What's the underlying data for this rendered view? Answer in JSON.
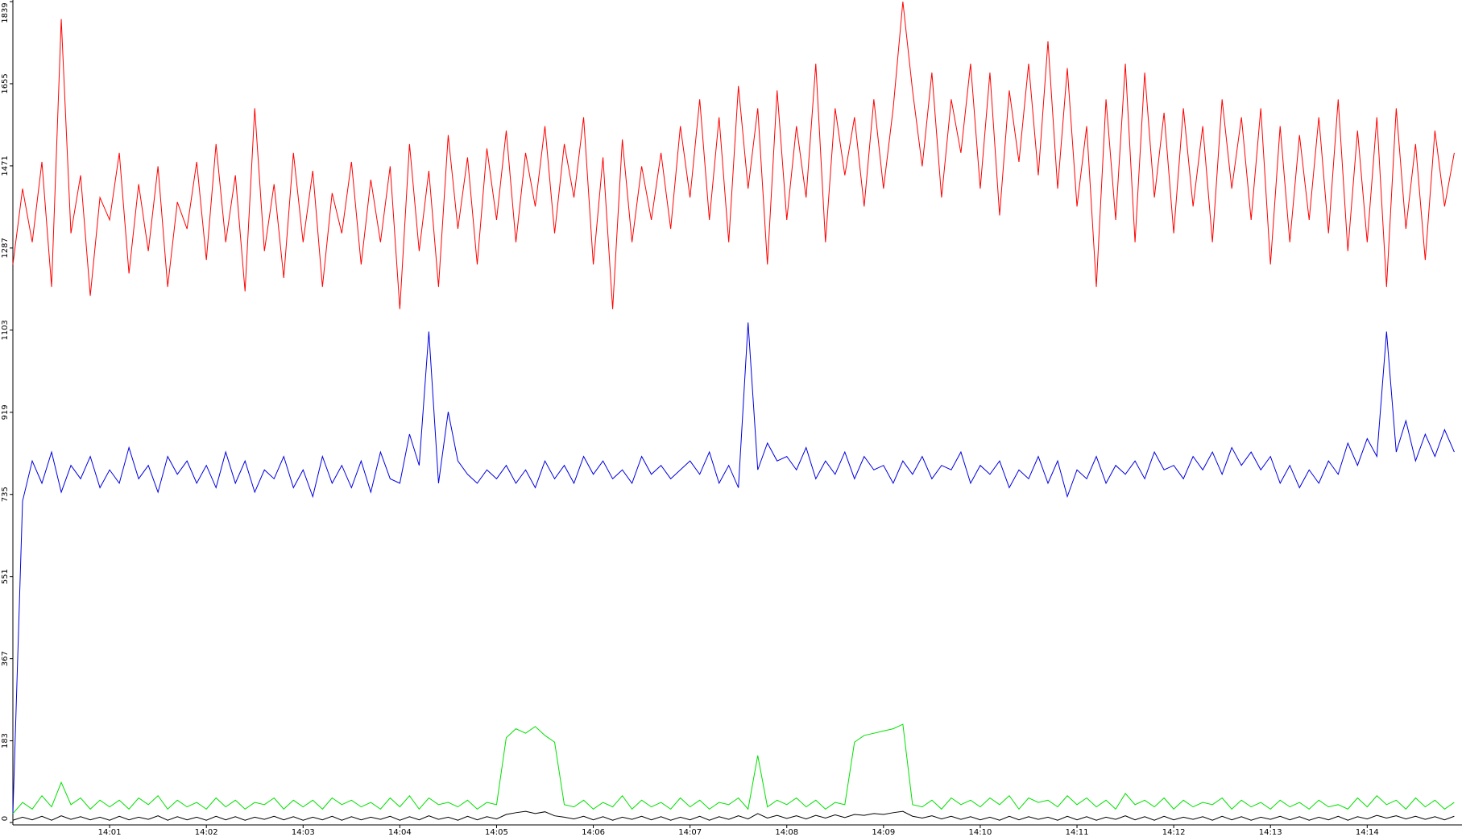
{
  "chart_data": {
    "type": "line",
    "x": [
      0,
      0.1,
      0.2,
      0.3,
      0.4,
      0.5,
      0.6,
      0.7,
      0.8,
      0.9,
      1,
      1.1,
      1.2,
      1.3,
      1.4,
      1.5,
      1.6,
      1.7,
      1.8,
      1.9,
      2,
      2.1,
      2.2,
      2.3,
      2.4,
      2.5,
      2.6,
      2.7,
      2.8,
      2.9,
      3,
      3.1,
      3.2,
      3.3,
      3.4,
      3.5,
      3.6,
      3.7,
      3.8,
      3.9,
      4,
      4.1,
      4.2,
      4.3,
      4.4,
      4.5,
      4.6,
      4.7,
      4.8,
      4.9,
      5,
      5.1,
      5.2,
      5.3,
      5.4,
      5.5,
      5.6,
      5.7,
      5.8,
      5.9,
      6,
      6.1,
      6.2,
      6.3,
      6.4,
      6.5,
      6.6,
      6.7,
      6.8,
      6.9,
      7,
      7.1,
      7.2,
      7.3,
      7.4,
      7.5,
      7.6,
      7.7,
      7.8,
      7.9,
      8,
      8.1,
      8.2,
      8.3,
      8.4,
      8.5,
      8.6,
      8.7,
      8.8,
      8.9,
      9,
      9.1,
      9.2,
      9.3,
      9.4,
      9.5,
      9.6,
      9.7,
      9.8,
      9.9,
      10,
      10.1,
      10.2,
      10.3,
      10.4,
      10.5,
      10.6,
      10.7,
      10.8,
      10.9,
      11,
      11.1,
      11.2,
      11.3,
      11.4,
      11.5,
      11.6,
      11.7,
      11.8,
      11.9,
      12,
      12.1,
      12.2,
      12.3,
      12.4,
      12.5,
      12.6,
      12.7,
      12.8,
      12.9,
      13,
      13.1,
      13.2,
      13.3,
      13.4,
      13.5,
      13.6,
      13.7,
      13.8,
      13.9,
      14,
      14.1,
      14.2,
      14.3,
      14.4,
      14.5,
      14.6,
      14.7,
      14.8,
      14.9
    ],
    "series": [
      {
        "color": "#ff0000",
        "values": [
          1250,
          1420,
          1300,
          1480,
          1200,
          1800,
          1320,
          1450,
          1180,
          1400,
          1350,
          1500,
          1230,
          1430,
          1280,
          1470,
          1200,
          1390,
          1330,
          1480,
          1260,
          1520,
          1300,
          1450,
          1190,
          1600,
          1280,
          1430,
          1220,
          1500,
          1300,
          1460,
          1200,
          1410,
          1320,
          1480,
          1250,
          1440,
          1300,
          1470,
          1150,
          1520,
          1280,
          1460,
          1200,
          1540,
          1330,
          1490,
          1250,
          1510,
          1350,
          1550,
          1300,
          1500,
          1380,
          1560,
          1320,
          1520,
          1400,
          1580,
          1250,
          1490,
          1150,
          1530,
          1300,
          1470,
          1350,
          1500,
          1330,
          1560,
          1400,
          1620,
          1350,
          1580,
          1300,
          1650,
          1420,
          1600,
          1250,
          1640,
          1350,
          1560,
          1400,
          1700,
          1300,
          1600,
          1450,
          1580,
          1380,
          1620,
          1420,
          1600,
          1839,
          1640,
          1470,
          1680,
          1400,
          1620,
          1500,
          1700,
          1420,
          1680,
          1360,
          1640,
          1480,
          1700,
          1450,
          1750,
          1420,
          1690,
          1380,
          1560,
          1200,
          1620,
          1350,
          1700,
          1300,
          1680,
          1400,
          1590,
          1320,
          1600,
          1380,
          1560,
          1300,
          1620,
          1420,
          1580,
          1350,
          1600,
          1250,
          1560,
          1300,
          1540,
          1350,
          1580,
          1320,
          1620,
          1280,
          1550,
          1300,
          1580,
          1200,
          1600,
          1330,
          1520,
          1260,
          1550,
          1380,
          1500
        ]
      },
      {
        "color": "#0000e0",
        "values": [
          20,
          720,
          810,
          760,
          830,
          740,
          800,
          770,
          820,
          750,
          790,
          760,
          840,
          770,
          800,
          740,
          820,
          780,
          810,
          760,
          800,
          750,
          830,
          760,
          810,
          740,
          790,
          770,
          820,
          750,
          790,
          730,
          820,
          760,
          800,
          750,
          810,
          740,
          830,
          770,
          760,
          870,
          800,
          1100,
          760,
          920,
          810,
          780,
          760,
          790,
          770,
          800,
          760,
          790,
          750,
          810,
          770,
          800,
          760,
          820,
          780,
          810,
          770,
          790,
          760,
          820,
          780,
          800,
          770,
          790,
          810,
          780,
          830,
          760,
          800,
          750,
          1120,
          790,
          850,
          810,
          820,
          790,
          840,
          770,
          810,
          780,
          830,
          770,
          820,
          790,
          800,
          760,
          810,
          780,
          820,
          770,
          800,
          790,
          830,
          760,
          800,
          780,
          810,
          750,
          790,
          770,
          820,
          760,
          810,
          730,
          790,
          770,
          820,
          760,
          800,
          780,
          810,
          770,
          830,
          790,
          800,
          770,
          820,
          790,
          830,
          780,
          840,
          800,
          830,
          790,
          820,
          760,
          800,
          750,
          790,
          760,
          810,
          780,
          850,
          800,
          860,
          820,
          1100,
          830,
          900,
          810,
          870,
          820,
          880,
          830
        ]
      },
      {
        "color": "#00e000",
        "values": [
          20,
          45,
          30,
          60,
          35,
          90,
          40,
          55,
          30,
          50,
          35,
          50,
          30,
          55,
          40,
          60,
          30,
          50,
          35,
          45,
          30,
          55,
          35,
          50,
          30,
          45,
          40,
          55,
          30,
          50,
          35,
          50,
          30,
          55,
          40,
          50,
          35,
          45,
          30,
          55,
          35,
          60,
          30,
          55,
          40,
          45,
          35,
          50,
          30,
          45,
          40,
          190,
          210,
          200,
          215,
          195,
          180,
          40,
          35,
          50,
          30,
          45,
          35,
          60,
          30,
          50,
          35,
          45,
          30,
          55,
          35,
          50,
          30,
          45,
          40,
          55,
          30,
          150,
          35,
          50,
          40,
          55,
          35,
          50,
          30,
          45,
          40,
          180,
          195,
          200,
          205,
          210,
          220,
          40,
          35,
          50,
          30,
          55,
          40,
          50,
          35,
          55,
          40,
          60,
          30,
          55,
          45,
          50,
          35,
          60,
          40,
          55,
          35,
          50,
          30,
          65,
          40,
          50,
          35,
          55,
          30,
          50,
          35,
          45,
          40,
          55,
          30,
          50,
          35,
          45,
          30,
          50,
          35,
          45,
          30,
          50,
          35,
          40,
          30,
          55,
          35,
          60,
          40,
          50,
          30,
          55,
          35,
          50,
          30,
          45
        ]
      },
      {
        "color": "#000000",
        "values": [
          5,
          12,
          6,
          14,
          5,
          15,
          7,
          13,
          6,
          12,
          5,
          14,
          6,
          12,
          7,
          15,
          5,
          13,
          6,
          12,
          5,
          14,
          6,
          13,
          5,
          12,
          7,
          14,
          6,
          13,
          5,
          12,
          6,
          14,
          5,
          13,
          6,
          12,
          7,
          14,
          5,
          13,
          6,
          15,
          7,
          12,
          5,
          14,
          6,
          13,
          8,
          18,
          22,
          25,
          20,
          24,
          15,
          12,
          8,
          14,
          6,
          13,
          5,
          12,
          7,
          14,
          6,
          13,
          5,
          12,
          6,
          14,
          5,
          13,
          7,
          15,
          8,
          20,
          10,
          16,
          9,
          15,
          8,
          16,
          10,
          17,
          11,
          18,
          16,
          20,
          18,
          22,
          25,
          14,
          10,
          15,
          8,
          14,
          7,
          13,
          6,
          12,
          5,
          14,
          6,
          13,
          7,
          12,
          5,
          14,
          6,
          13,
          5,
          12,
          7,
          15,
          6,
          13,
          5,
          14,
          6,
          12,
          7,
          13,
          5,
          14,
          6,
          13,
          5,
          12,
          7,
          14,
          6,
          13,
          5,
          12,
          6,
          14,
          5,
          13,
          8,
          16,
          10,
          15,
          8,
          14,
          7,
          13,
          6,
          14
        ]
      }
    ],
    "xlim": [
      0,
      14.98
    ],
    "xticks": [
      {
        "value": 1,
        "label": "14:01"
      },
      {
        "value": 2,
        "label": "14:02"
      },
      {
        "value": 3,
        "label": "14:03"
      },
      {
        "value": 4,
        "label": "14:04"
      },
      {
        "value": 5,
        "label": "14:05"
      },
      {
        "value": 6,
        "label": "14:06"
      },
      {
        "value": 7,
        "label": "14:07"
      },
      {
        "value": 8,
        "label": "14:08"
      },
      {
        "value": 9,
        "label": "14:09"
      },
      {
        "value": 10,
        "label": "14:10"
      },
      {
        "value": 11,
        "label": "14:11"
      },
      {
        "value": 12,
        "label": "14:12"
      },
      {
        "value": 13,
        "label": "14:13"
      },
      {
        "value": 14,
        "label": "14:14"
      }
    ],
    "ylim": [
      0,
      1839
    ],
    "yticks": [
      0,
      183,
      367,
      551,
      735,
      919,
      1103,
      1287,
      1471,
      1655,
      1839
    ]
  }
}
